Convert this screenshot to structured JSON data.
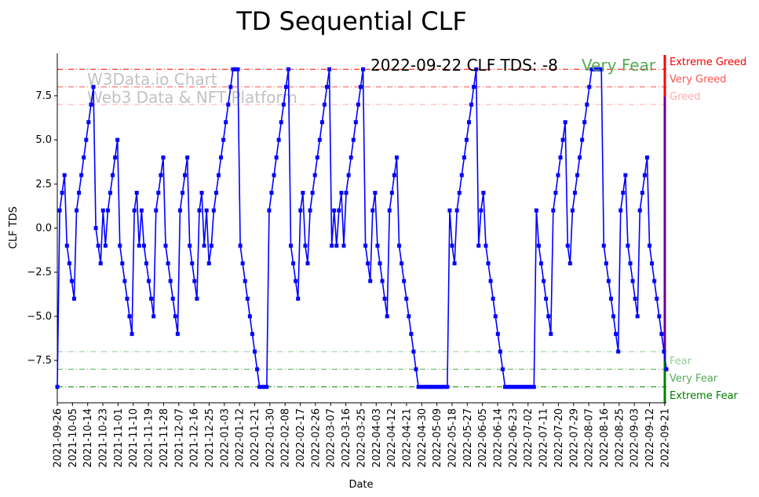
{
  "chart_data": {
    "type": "line",
    "title": "TD Sequential CLF",
    "xlabel": "Date",
    "ylabel": "CLF TDS",
    "annotation": "2022-09-22 CLF TDS: -8",
    "status": "Very Fear",
    "watermark": [
      "W3Data.io Chart",
      "Web3 Data & NFT Platform"
    ],
    "x_start": "2021-09-26",
    "x_end": "2022-09-22",
    "ylim": [
      -9.9,
      9.9
    ],
    "yticks": [
      -7.5,
      -5.0,
      -2.5,
      0.0,
      2.5,
      5.0,
      7.5
    ],
    "ytick_labels": [
      "−7.5",
      "−5.0",
      "−2.5",
      "0.0",
      "2.5",
      "5.0",
      "7.5"
    ],
    "xtick_labels": [
      "2021-09-26",
      "2021-10-05",
      "2021-10-14",
      "2021-10-23",
      "2021-11-01",
      "2021-11-10",
      "2021-11-19",
      "2021-11-28",
      "2021-12-07",
      "2021-12-16",
      "2021-12-25",
      "2022-01-03",
      "2022-01-12",
      "2022-01-21",
      "2022-01-30",
      "2022-02-08",
      "2022-02-17",
      "2022-02-26",
      "2022-03-07",
      "2022-03-16",
      "2022-03-25",
      "2022-04-03",
      "2022-04-12",
      "2022-04-21",
      "2022-04-30",
      "2022-05-09",
      "2022-05-18",
      "2022-05-27",
      "2022-06-05",
      "2022-06-14",
      "2022-06-23",
      "2022-07-02",
      "2022-07-11",
      "2022-07-20",
      "2022-07-29",
      "2022-08-07",
      "2022-08-16",
      "2022-08-25",
      "2022-09-03",
      "2022-09-12",
      "2022-09-21"
    ],
    "levels": [
      {
        "name": "Extreme Greed",
        "value": 9,
        "color": "#ff0000"
      },
      {
        "name": "Very Greed",
        "value": 8,
        "color": "#ff5555"
      },
      {
        "name": "Greed",
        "value": 7,
        "color": "#ffaaaa"
      },
      {
        "name": "Fear",
        "value": -7,
        "color": "#99cc99"
      },
      {
        "name": "Very Fear",
        "value": -8,
        "color": "#55aa55"
      },
      {
        "name": "Extreme Fear",
        "value": -9,
        "color": "#008000"
      }
    ],
    "series": [
      {
        "name": "CLF TDS",
        "color": "#0000ff",
        "values": [
          -9,
          1,
          2,
          3,
          -1,
          -2,
          -3,
          -4,
          1,
          2,
          3,
          4,
          5,
          6,
          7,
          8,
          0,
          -1,
          -2,
          1,
          -1,
          1,
          2,
          3,
          4,
          5,
          -1,
          -2,
          -3,
          -4,
          -5,
          -6,
          1,
          2,
          -1,
          1,
          -1,
          -2,
          -3,
          -4,
          -5,
          1,
          2,
          3,
          4,
          -1,
          -2,
          -3,
          -4,
          -5,
          -6,
          1,
          2,
          3,
          4,
          -1,
          -2,
          -3,
          -4,
          1,
          2,
          -1,
          1,
          -2,
          -1,
          1,
          2,
          3,
          4,
          5,
          6,
          7,
          8,
          9,
          9,
          9,
          -1,
          -2,
          -3,
          -4,
          -5,
          -6,
          -7,
          -8,
          -9,
          -9,
          -9,
          -9,
          1,
          2,
          3,
          4,
          5,
          6,
          7,
          8,
          9,
          -1,
          -2,
          -3,
          -4,
          1,
          2,
          -1,
          -2,
          1,
          2,
          3,
          4,
          5,
          6,
          7,
          8,
          9,
          -1,
          1,
          -1,
          1,
          2,
          -1,
          2,
          3,
          4,
          5,
          6,
          7,
          8,
          9,
          -1,
          -2,
          -3,
          1,
          2,
          -1,
          -2,
          -3,
          -4,
          -5,
          1,
          2,
          3,
          4,
          -1,
          -2,
          -3,
          -4,
          -5,
          -6,
          -7,
          -8,
          -9,
          -9,
          -9,
          -9,
          -9,
          -9,
          -9,
          -9,
          -9,
          -9,
          -9,
          -9,
          -9,
          1,
          -1,
          -2,
          1,
          2,
          3,
          4,
          5,
          6,
          7,
          8,
          9,
          -1,
          1,
          2,
          -1,
          -2,
          -3,
          -4,
          -5,
          -6,
          -7,
          -8,
          -9,
          -9,
          -9,
          -9,
          -9,
          -9,
          -9,
          -9,
          -9,
          -9,
          -9,
          -9,
          -9,
          1,
          -1,
          -2,
          -3,
          -4,
          -5,
          -6,
          1,
          2,
          3,
          4,
          5,
          6,
          -1,
          -2,
          1,
          2,
          3,
          4,
          5,
          6,
          7,
          8,
          9,
          9,
          9,
          9,
          9,
          -1,
          -2,
          -3,
          -4,
          -5,
          -6,
          -7,
          1,
          2,
          3,
          -1,
          -2,
          -3,
          -4,
          -5,
          1,
          2,
          3,
          4,
          -1,
          -2,
          -3,
          -4,
          -5,
          -6,
          -7,
          -8
        ]
      }
    ]
  }
}
